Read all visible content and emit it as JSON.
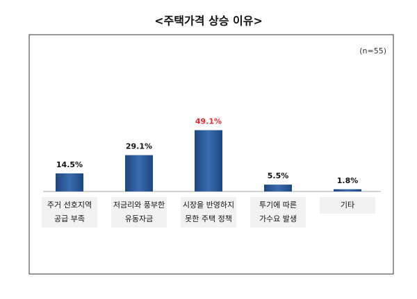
{
  "chart_data": {
    "type": "bar",
    "title": "<주택가격 상승 이유>",
    "note": "(n=55)",
    "categories": [
      [
        "주거 선호지역",
        "공급 부족"
      ],
      [
        "저금리와 풍부한",
        "유동자금"
      ],
      [
        "시장을 반영하지",
        "못한 주택 정책"
      ],
      [
        "투기에 따른",
        "가수요 발생"
      ],
      [
        "기타"
      ]
    ],
    "values": [
      14.5,
      29.1,
      49.1,
      5.5,
      1.8
    ],
    "value_labels": [
      "14.5%",
      "29.1%",
      "49.1%",
      "5.5%",
      "1.8%"
    ],
    "value_label_colors": [
      "#111111",
      "#111111",
      "#e8262d",
      "#111111",
      "#111111"
    ],
    "color": "#2b5797",
    "ylim": [
      0,
      60
    ]
  }
}
